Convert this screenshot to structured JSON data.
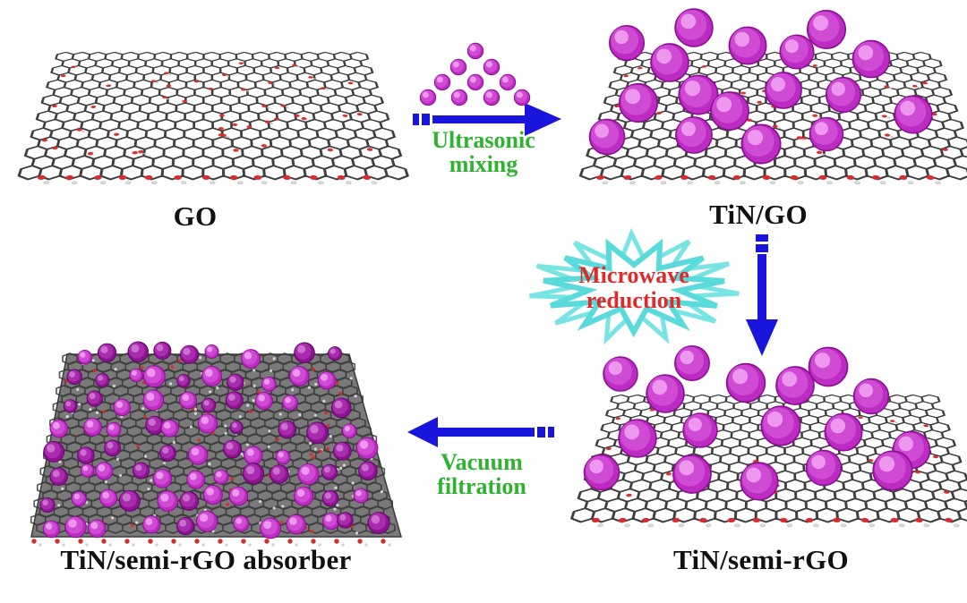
{
  "figure": {
    "panels": {
      "go": {
        "label": "GO"
      },
      "tin_go": {
        "label": "TiN/GO"
      },
      "tin_semi_rgo": {
        "label": "TiN/semi-rGO"
      },
      "absorber": {
        "label": "TiN/semi-rGO absorber"
      }
    },
    "steps": {
      "ultrasonic": {
        "line1": "Ultrasonic",
        "line2": "mixing",
        "color": "#2db32d"
      },
      "microwave": {
        "line1": "Microwave",
        "line2": "reduction",
        "color": "#e02a2a"
      },
      "vacuum": {
        "line1": "Vacuum",
        "line2": "filtration",
        "color": "#2db32d"
      }
    },
    "icons": {
      "nanoparticle_pyramid": "tin-nanoparticle-pyramid-icon",
      "ultrasonic_arrow": "arrow-right-icon",
      "microwave_burst": "starburst-icon",
      "reduction_arrow": "arrow-down-icon",
      "filtration_arrow": "arrow-left-icon"
    },
    "colors": {
      "background": "#ffffff",
      "carbon_black": "#2e2e2e",
      "oxygen_red": "#d92b2b",
      "nanoparticle_magenta": "#c22ec8",
      "arrow_blue": "#1a15dd",
      "burst_cyan": "#5adada",
      "label_black": "#111111"
    }
  }
}
